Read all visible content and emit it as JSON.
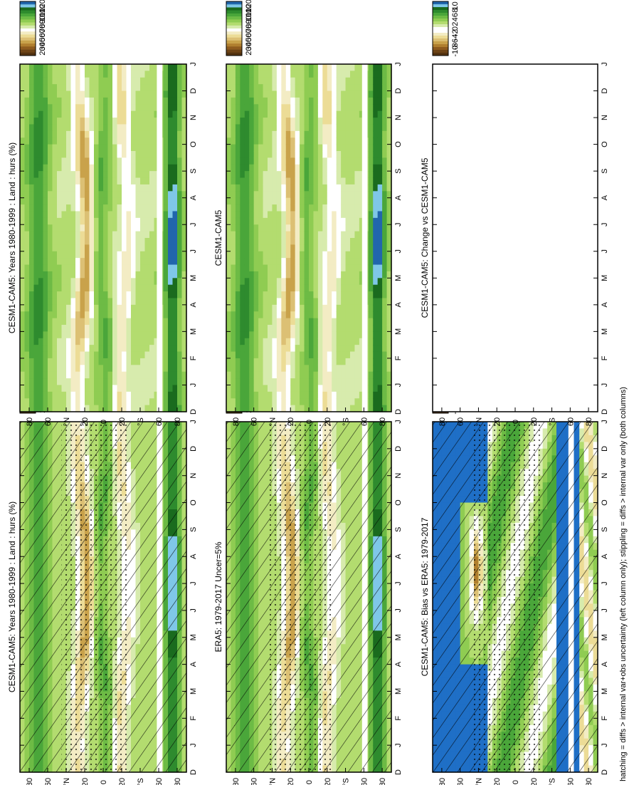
{
  "figure": {
    "footnote": "hatching = diffs > internal var+obs uncertainty (left column only); stippling = diffs > internal var only (both columns)"
  },
  "colors": {
    "abs_scale": [
      "#2166ac",
      "#7fc7e8",
      "#1a6b1e",
      "#2e8b2e",
      "#4aa63a",
      "#6dbb45",
      "#8fcc52",
      "#b3dc6f",
      "#d7ebad",
      "#ffffff",
      "#f3ecc4",
      "#ecdc96",
      "#dcc074",
      "#c9a24b",
      "#b07f2f",
      "#8e5b1e",
      "#6e4416",
      "#543310"
    ],
    "diff_scale": [
      "#2166ac",
      "#7fc7e8",
      "#1a6b1e",
      "#2e8b2e",
      "#4aa63a",
      "#6dbb45",
      "#8fcc52",
      "#b3dc6f",
      "#d7ebad",
      "#ffffff",
      "#ffffff",
      "#f3ecc4",
      "#ecdc96",
      "#dcc074",
      "#c9a24b",
      "#b07f2f",
      "#8e5b1e",
      "#6e4416",
      "#543310"
    ],
    "blue_fill": "#1f6fc6"
  },
  "chart_data": [
    {
      "type": "heatmap",
      "title": "CESM1-CAM5: Years 1980-1999 : Land : hurs (%)",
      "x": [
        "D",
        "J",
        "F",
        "M",
        "A",
        "M",
        "J",
        "J",
        "A",
        "S",
        "O",
        "N",
        "D",
        "J"
      ],
      "y_ticks": [
        "80",
        "60",
        "°N",
        "20",
        "0",
        "20",
        "°S",
        "60",
        "80"
      ],
      "ylim": [
        -90,
        90
      ],
      "colorbar": {
        "ticks": [
          "120",
          "110",
          "100",
          "90",
          "80",
          "70",
          "60",
          "50",
          "40",
          "30",
          "20"
        ],
        "range": [
          15,
          125
        ]
      },
      "hatching": true,
      "stippling": true
    },
    {
      "type": "heatmap",
      "title": "CESM1-CAM5: Years 1980-1999 : Land : hurs (%)",
      "x": [
        "D",
        "J",
        "F",
        "M",
        "A",
        "M",
        "J",
        "J",
        "A",
        "S",
        "O",
        "N",
        "D",
        "J"
      ],
      "y_ticks": [
        "80",
        "60",
        "°N",
        "20",
        "0",
        "20",
        "°S",
        "60",
        "80"
      ],
      "ylim": [
        -90,
        90
      ],
      "colorbar": {
        "ticks": [
          "120",
          "110",
          "100",
          "90",
          "80",
          "70",
          "60",
          "50",
          "40",
          "30",
          "20"
        ],
        "range": [
          15,
          125
        ]
      },
      "hatching": false,
      "stippling": false
    },
    {
      "type": "heatmap",
      "title": "ERA5: 1979-2017 Uncer=5%",
      "x": [
        "D",
        "J",
        "F",
        "M",
        "A",
        "M",
        "J",
        "J",
        "A",
        "S",
        "O",
        "N",
        "D",
        "J"
      ],
      "y_ticks": [
        "80",
        "60",
        "°N",
        "20",
        "0",
        "20",
        "°S",
        "60",
        "80"
      ],
      "ylim": [
        -90,
        90
      ],
      "colorbar": {
        "ticks": [
          "120",
          "110",
          "100",
          "90",
          "80",
          "70",
          "60",
          "50",
          "40",
          "30",
          "20"
        ],
        "range": [
          15,
          125
        ]
      },
      "hatching": true,
      "stippling": true
    },
    {
      "type": "heatmap",
      "title": "CESM1-CAM5",
      "x": [
        "D",
        "J",
        "F",
        "M",
        "A",
        "M",
        "J",
        "J",
        "A",
        "S",
        "O",
        "N",
        "D",
        "J"
      ],
      "y_ticks": [
        "80",
        "60",
        "°N",
        "20",
        "0",
        "20",
        "°S",
        "60",
        "80"
      ],
      "ylim": [
        -90,
        90
      ],
      "colorbar": {
        "ticks": [
          "120",
          "110",
          "100",
          "90",
          "80",
          "70",
          "60",
          "50",
          "40",
          "30",
          "20"
        ],
        "range": [
          15,
          125
        ]
      },
      "hatching": false,
      "stippling": false
    },
    {
      "type": "heatmap",
      "title": "CESM1-CAM5: Bias vs ERA5: 1979-2017",
      "x": [
        "D",
        "J",
        "F",
        "M",
        "A",
        "M",
        "J",
        "J",
        "A",
        "S",
        "O",
        "N",
        "D",
        "J"
      ],
      "y_ticks": [
        "80",
        "60",
        "°N",
        "20",
        "0",
        "20",
        "°S",
        "60",
        "80"
      ],
      "ylim": [
        -90,
        90
      ],
      "colorbar": {
        "ticks": [
          "10",
          "8",
          "6",
          "4",
          "2",
          "0",
          "-2",
          "-4",
          "-6",
          "-8",
          "-10"
        ],
        "range": [
          -11,
          11
        ]
      },
      "hatching": true,
      "stippling": true
    },
    {
      "type": "heatmap",
      "title": "CESM1-CAM5: Change vs CESM1-CAM5",
      "x": [
        "D",
        "J",
        "F",
        "M",
        "A",
        "M",
        "J",
        "J",
        "A",
        "S",
        "O",
        "N",
        "D",
        "J"
      ],
      "y_ticks": [
        "80",
        "60",
        "°N",
        "20",
        "0",
        "20",
        "°S",
        "60",
        "80"
      ],
      "ylim": [
        -90,
        90
      ],
      "colorbar": {
        "ticks": [
          "10",
          "8",
          "6",
          "4",
          "2",
          "0",
          "-2",
          "-4",
          "-6",
          "-8",
          "-10"
        ],
        "range": [
          -11,
          11
        ]
      },
      "hatching": false,
      "stippling": false
    }
  ]
}
